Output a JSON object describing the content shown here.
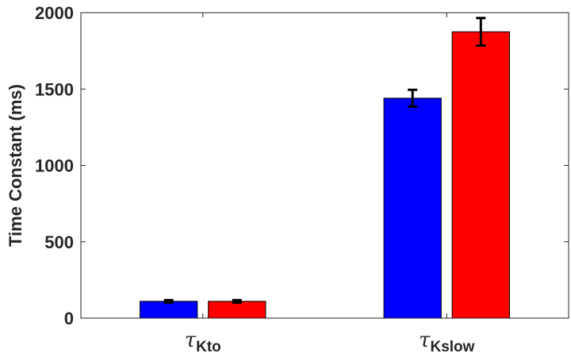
{
  "chart_data": {
    "type": "bar",
    "categories": [
      {
        "symbol": "τ",
        "subscript": "Kto"
      },
      {
        "symbol": "τ",
        "subscript": "Kslow"
      }
    ],
    "series": [
      {
        "color": "#0000ff",
        "values": [
          110,
          1440
        ],
        "errors": [
          8,
          55
        ]
      },
      {
        "color": "#ff0000",
        "values": [
          110,
          1875
        ],
        "errors": [
          8,
          90
        ]
      }
    ],
    "ylabel": "Time Constant (ms)",
    "xlabel": "",
    "title": "",
    "ylim": [
      0,
      2000
    ],
    "yticks": [
      0,
      500,
      1000,
      1500,
      2000
    ],
    "ytick_labels": [
      "0",
      "500",
      "1000",
      "1500",
      "2000"
    ],
    "grid": false,
    "legend": "none"
  }
}
